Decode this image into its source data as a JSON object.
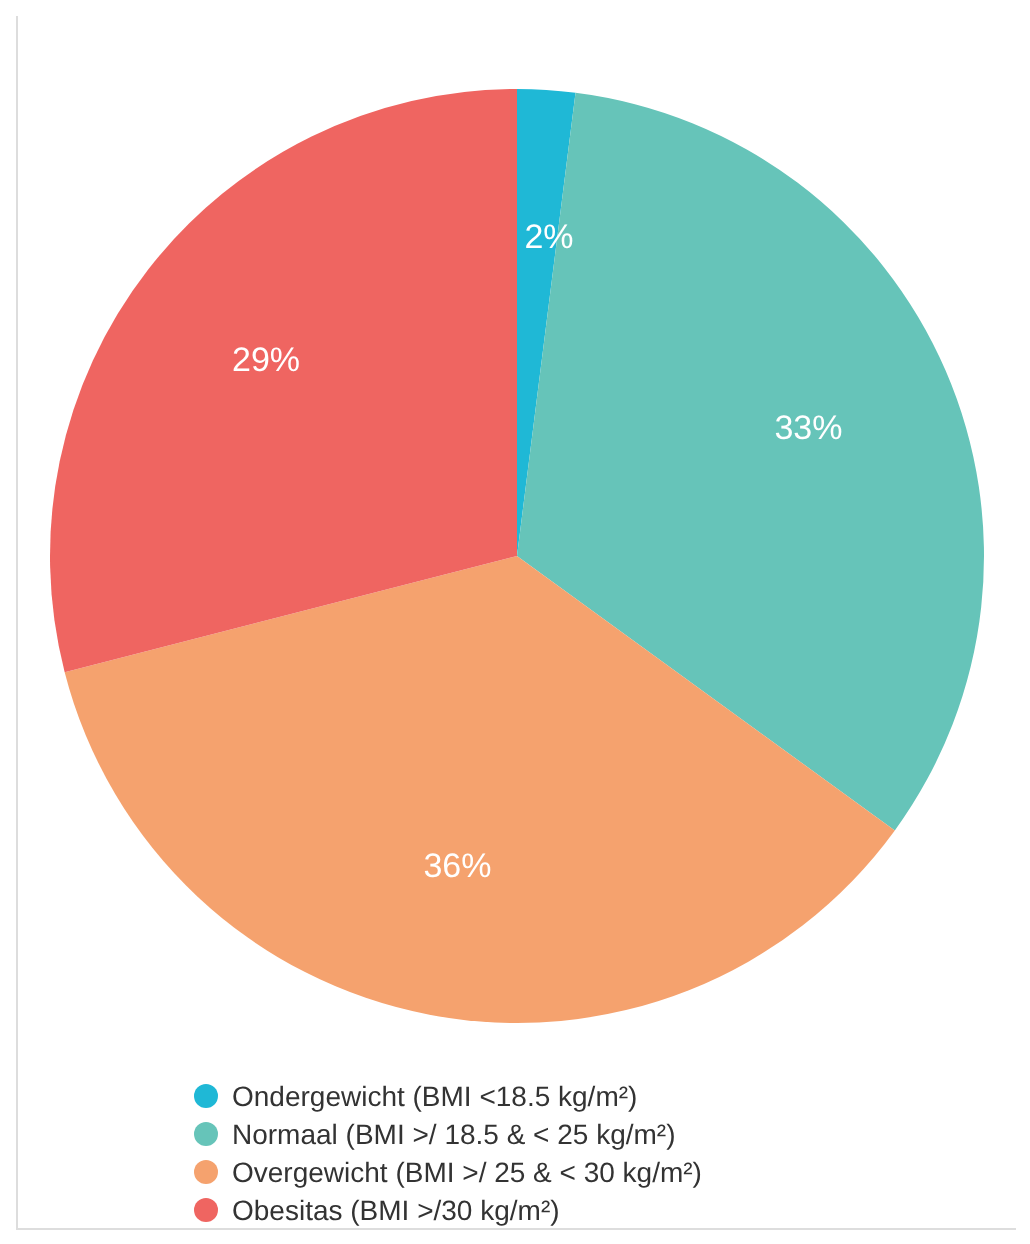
{
  "chart_data": {
    "type": "pie",
    "categories": [
      "Ondergewicht (BMI <18.5 kg/m²)",
      "Normaal (BMI >/ 18.5 & < 25 kg/m²)",
      "Overgewicht (BMI >/ 25 & < 30 kg/m²)",
      "Obesitas (BMI >/30 kg/m²)"
    ],
    "values": [
      2,
      33,
      36,
      29
    ],
    "colors": [
      "#1fb8d6",
      "#66c4b9",
      "#f5a26e",
      "#ef6561"
    ],
    "value_labels": [
      "2%",
      "33%",
      "36%",
      "29%"
    ],
    "legend": "bottom"
  }
}
